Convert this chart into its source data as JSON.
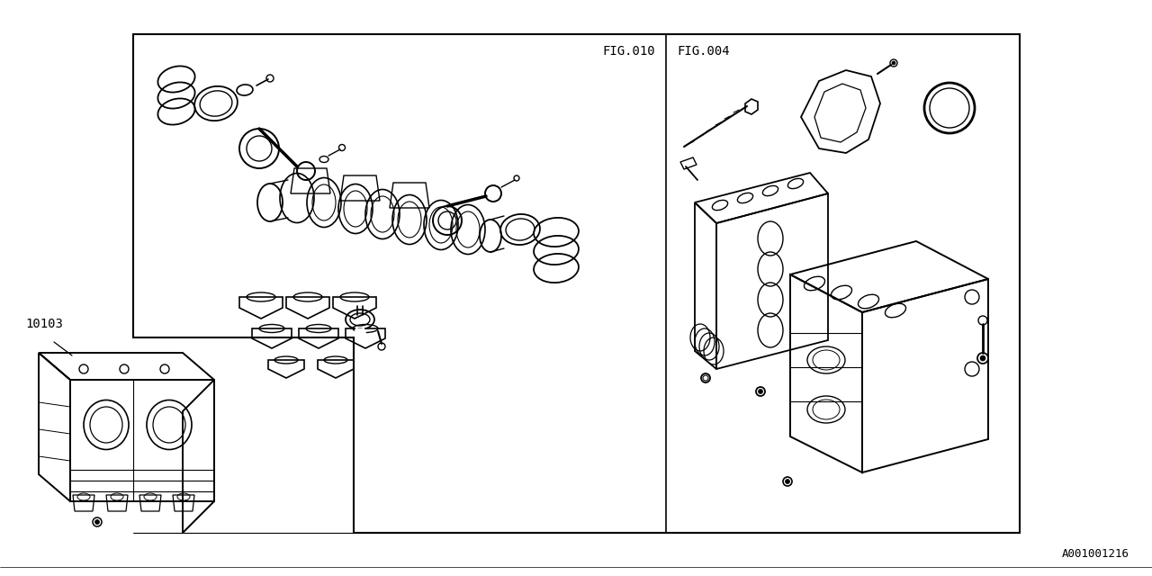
{
  "bg_color": "#ffffff",
  "line_color": "#000000",
  "fig010_label": "FIG.010",
  "fig004_label": "FIG.004",
  "part_number": "10103",
  "diagram_id": "A001001216"
}
